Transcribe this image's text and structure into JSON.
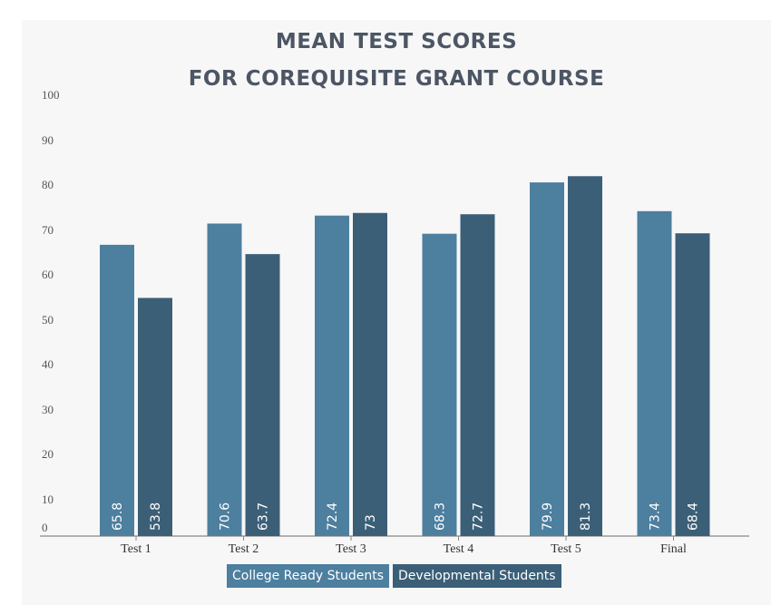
{
  "chart_data": {
    "type": "bar",
    "title_lines": [
      "MEAN TEST SCORES",
      "FOR COREQUISITE GRANT COURSE"
    ],
    "categories": [
      "Test 1",
      "Test 2",
      "Test 3",
      "Test 4",
      "Test 5",
      "Final"
    ],
    "series": [
      {
        "name": "College Ready Students",
        "color": "#4d7f9f",
        "values": [
          65.8,
          70.6,
          72.4,
          68.3,
          79.9,
          73.4
        ],
        "labels": [
          "65.8",
          "70.6",
          "72.4",
          "68.3",
          "79.9",
          "73.4"
        ]
      },
      {
        "name": "Developmental Students",
        "color": "#3c5f78",
        "values": [
          53.8,
          63.7,
          73,
          72.7,
          81.3,
          68.4
        ],
        "labels": [
          "53.8",
          "63.7",
          "73",
          "72.7",
          "81.3",
          "68.4"
        ]
      }
    ],
    "ylim": [
      0,
      100
    ],
    "yticks": [
      "0",
      "10",
      "20",
      "30",
      "40",
      "50",
      "60",
      "70",
      "80",
      "90",
      "100"
    ],
    "grid": false,
    "legend_position": "bottom"
  }
}
